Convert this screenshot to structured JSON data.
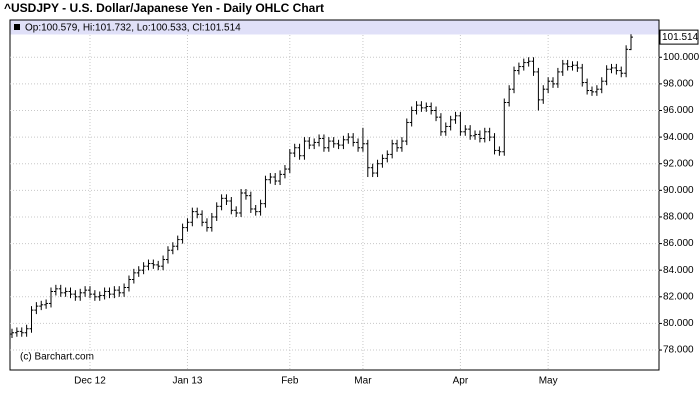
{
  "chart_data": {
    "type": "ohlc",
    "title": "^USDJPY - U.S. Dollar/Japanese Yen - Daily OHLC Chart",
    "info_label": "Op:100.579, Hi:101.732, Lo:100.533, Cl:101.514",
    "watermark": "(c) Barchart.com",
    "color": "#000000",
    "header_color": "#e0e0f8",
    "categories": [
      null,
      null,
      null,
      null,
      null,
      null,
      null,
      null,
      null,
      null,
      null,
      null,
      null,
      null,
      null,
      null,
      "Dec 12",
      null,
      null,
      null,
      null,
      null,
      null,
      null,
      null,
      null,
      null,
      null,
      null,
      null,
      null,
      null,
      null,
      null,
      null,
      null,
      "Jan 13",
      null,
      null,
      null,
      null,
      null,
      null,
      null,
      null,
      null,
      null,
      null,
      null,
      null,
      null,
      null,
      null,
      null,
      null,
      null,
      null,
      "Feb",
      null,
      null,
      null,
      null,
      null,
      null,
      null,
      null,
      null,
      null,
      null,
      null,
      null,
      null,
      "Mar",
      null,
      null,
      null,
      null,
      null,
      null,
      null,
      null,
      null,
      null,
      null,
      null,
      null,
      null,
      null,
      null,
      null,
      null,
      null,
      "Apr",
      null,
      null,
      null,
      null,
      null,
      null,
      null,
      null,
      null,
      null,
      null,
      null,
      null,
      null,
      null,
      null,
      null,
      "May",
      null,
      null,
      null,
      null,
      null,
      null,
      null,
      null,
      null,
      null,
      null,
      null,
      null,
      null,
      null,
      null,
      null
    ],
    "open": [
      79.2,
      79.3,
      79.4,
      79.3,
      79.6,
      81.0,
      81.3,
      81.4,
      81.5,
      82.4,
      82.6,
      82.3,
      82.4,
      82.2,
      82.0,
      82.3,
      82.5,
      82.2,
      82.0,
      82.1,
      82.4,
      82.2,
      82.5,
      82.3,
      82.7,
      83.3,
      83.8,
      84.0,
      84.3,
      84.5,
      84.4,
      84.3,
      84.8,
      85.5,
      85.8,
      86.3,
      87.2,
      87.6,
      88.4,
      88.2,
      87.6,
      87.2,
      88.0,
      88.8,
      89.4,
      89.2,
      88.5,
      88.3,
      89.8,
      89.6,
      88.6,
      88.4,
      89.0,
      90.8,
      91.0,
      90.7,
      91.2,
      91.6,
      92.8,
      93.2,
      92.6,
      93.7,
      93.4,
      93.6,
      93.9,
      93.2,
      93.7,
      93.5,
      93.4,
      93.8,
      94.0,
      93.6,
      93.2,
      93.5,
      91.7,
      91.3,
      92.0,
      92.4,
      92.7,
      93.5,
      93.2,
      93.7,
      95.1,
      96.0,
      96.4,
      96.2,
      96.3,
      96.0,
      95.5,
      94.4,
      94.8,
      95.3,
      95.6,
      94.4,
      94.6,
      94.1,
      94.2,
      93.9,
      94.4,
      94.0,
      93.0,
      92.9,
      96.6,
      97.6,
      99.0,
      99.3,
      99.6,
      99.7,
      98.9,
      96.8,
      97.6,
      98.2,
      98.0,
      98.9,
      99.5,
      99.3,
      99.4,
      99.2,
      98.1,
      97.5,
      97.4,
      97.6,
      98.2,
      99.1,
      99.2,
      99.0,
      98.8,
      100.579
    ],
    "high": [
      79.6,
      79.7,
      79.7,
      79.9,
      81.3,
      81.6,
      81.7,
      81.8,
      82.7,
      82.9,
      82.9,
      82.7,
      82.7,
      82.5,
      82.6,
      82.8,
      82.8,
      82.5,
      82.4,
      82.7,
      82.7,
      82.8,
      82.8,
      83.0,
      83.6,
      84.1,
      84.3,
      84.6,
      84.8,
      84.8,
      84.7,
      85.1,
      85.8,
      86.1,
      86.6,
      87.5,
      87.9,
      88.7,
      88.7,
      88.5,
      87.9,
      88.3,
      89.1,
      89.7,
      89.7,
      89.5,
      88.8,
      90.1,
      90.1,
      89.9,
      88.9,
      89.3,
      91.1,
      91.3,
      91.3,
      91.5,
      91.9,
      93.1,
      93.5,
      93.5,
      94.0,
      94.0,
      93.9,
      94.2,
      94.2,
      94.0,
      94.0,
      93.8,
      94.1,
      94.3,
      94.3,
      93.9,
      94.7,
      93.8,
      92.0,
      92.3,
      92.7,
      93.0,
      93.8,
      93.8,
      94.0,
      95.4,
      96.3,
      96.7,
      96.7,
      96.6,
      96.6,
      96.3,
      95.8,
      95.1,
      95.6,
      95.9,
      95.9,
      94.9,
      94.9,
      94.5,
      94.5,
      94.7,
      94.7,
      94.3,
      93.3,
      96.9,
      97.9,
      99.3,
      99.6,
      99.9,
      100.0,
      100.0,
      99.2,
      97.9,
      98.5,
      98.5,
      99.2,
      99.8,
      99.8,
      99.7,
      99.7,
      99.5,
      98.4,
      97.8,
      97.9,
      98.5,
      99.4,
      99.5,
      99.5,
      99.3,
      100.9,
      101.732
    ],
    "low": [
      78.9,
      79.0,
      79.0,
      79.0,
      79.3,
      80.7,
      81.0,
      81.1,
      81.2,
      82.1,
      82.0,
      82.0,
      81.9,
      81.7,
      81.7,
      82.0,
      81.9,
      81.7,
      81.7,
      81.8,
      81.9,
      81.9,
      82.0,
      82.0,
      82.4,
      83.0,
      83.5,
      83.7,
      84.0,
      84.1,
      84.0,
      84.0,
      84.5,
      85.2,
      85.5,
      86.0,
      86.9,
      87.3,
      87.9,
      87.3,
      86.9,
      86.9,
      87.7,
      88.5,
      88.9,
      88.2,
      88.0,
      88.0,
      89.3,
      88.3,
      88.1,
      88.1,
      88.7,
      90.5,
      90.4,
      90.4,
      90.9,
      91.3,
      92.5,
      92.3,
      92.3,
      93.1,
      93.1,
      93.3,
      92.9,
      92.9,
      93.2,
      93.1,
      93.1,
      93.5,
      93.3,
      92.9,
      92.9,
      91.0,
      91.0,
      91.0,
      91.7,
      92.1,
      92.4,
      92.9,
      92.9,
      93.4,
      94.8,
      95.7,
      95.9,
      95.9,
      95.7,
      95.2,
      94.1,
      94.1,
      94.5,
      95.0,
      94.1,
      94.1,
      93.8,
      93.8,
      93.6,
      93.6,
      93.7,
      92.7,
      92.6,
      92.6,
      96.3,
      97.3,
      98.7,
      99.0,
      99.3,
      98.6,
      96.0,
      96.5,
      97.3,
      97.7,
      97.7,
      98.6,
      99.0,
      99.0,
      98.9,
      97.8,
      97.2,
      97.1,
      97.1,
      97.3,
      97.9,
      98.8,
      98.7,
      98.5,
      98.5,
      100.533
    ],
    "close": [
      79.3,
      79.4,
      79.3,
      79.6,
      81.0,
      81.3,
      81.4,
      81.5,
      82.4,
      82.6,
      82.3,
      82.4,
      82.2,
      82.0,
      82.3,
      82.5,
      82.2,
      82.0,
      82.1,
      82.4,
      82.2,
      82.5,
      82.3,
      82.7,
      83.3,
      83.8,
      84.0,
      84.3,
      84.5,
      84.4,
      84.3,
      84.8,
      85.5,
      85.8,
      86.3,
      87.2,
      87.6,
      88.4,
      88.2,
      87.6,
      87.2,
      88.0,
      88.8,
      89.4,
      89.2,
      88.5,
      88.3,
      89.8,
      89.6,
      88.6,
      88.4,
      89.0,
      90.8,
      91.0,
      90.7,
      91.2,
      91.6,
      92.8,
      93.2,
      92.6,
      93.7,
      93.4,
      93.6,
      93.9,
      93.2,
      93.7,
      93.5,
      93.4,
      93.8,
      94.0,
      93.6,
      93.2,
      93.5,
      91.7,
      91.3,
      92.0,
      92.4,
      92.7,
      93.5,
      93.2,
      93.7,
      95.1,
      96.0,
      96.4,
      96.2,
      96.3,
      96.0,
      95.5,
      94.4,
      94.8,
      95.3,
      95.6,
      94.4,
      94.6,
      94.1,
      94.2,
      93.9,
      94.4,
      94.0,
      93.0,
      92.9,
      96.6,
      97.6,
      99.0,
      99.3,
      99.6,
      99.7,
      98.9,
      96.8,
      97.6,
      98.2,
      98.0,
      98.9,
      99.5,
      99.3,
      99.4,
      99.2,
      98.1,
      97.5,
      97.4,
      97.6,
      98.2,
      99.1,
      99.2,
      99.0,
      98.8,
      100.6,
      101.514
    ],
    "ylim": [
      76.5,
      102.8
    ],
    "yticks": [
      {
        "value": 78,
        "label": "78.000"
      },
      {
        "value": 80,
        "label": "80.000"
      },
      {
        "value": 82,
        "label": "82.000"
      },
      {
        "value": 84,
        "label": "84.000"
      },
      {
        "value": 86,
        "label": "86.000"
      },
      {
        "value": 88,
        "label": "88.000"
      },
      {
        "value": 90,
        "label": "90.000"
      },
      {
        "value": 92,
        "label": "92.000"
      },
      {
        "value": 94,
        "label": "94.000"
      },
      {
        "value": 96,
        "label": "96.000"
      },
      {
        "value": 98,
        "label": "98.000"
      },
      {
        "value": 100,
        "label": "100.000"
      }
    ],
    "grid": true
  }
}
